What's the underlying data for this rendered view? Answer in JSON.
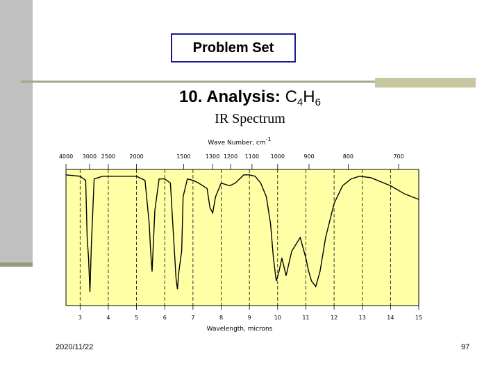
{
  "slide": {
    "box_title": "Problem Set",
    "heading_bold": "10. Analysis:",
    "formula_c": "C",
    "formula_c_sub": "4",
    "formula_h": "H",
    "formula_h_sub": "6",
    "subheading": "IR Spectrum",
    "date": "2020/11/22",
    "page_number": "97"
  },
  "colors": {
    "plot_fill": "#ffffa6",
    "spectrum": "#000000",
    "sidebar": "#c0c0c0",
    "title_border": "#1a1a8c"
  },
  "chart_data": {
    "type": "line",
    "title": "",
    "xlabel": "Wavelength, microns",
    "x2label_text": "Wave Number, cm",
    "x2label_sup": "-1",
    "ylabel": "",
    "xlim": [
      2.5,
      15
    ],
    "ylim": [
      0,
      100
    ],
    "grid": true,
    "legend": "none",
    "bottom_ticks": [
      "3",
      "4",
      "5",
      "6",
      "7",
      "8",
      "9",
      "10",
      "11",
      "12",
      "13",
      "14",
      "15"
    ],
    "top_ticks": [
      "4000",
      "3000",
      "2500",
      "2000",
      "1500",
      "1300",
      "1200",
      "1100",
      "1000",
      "900",
      "800",
      "700"
    ],
    "series": [
      {
        "x": [
          2.5,
          3.0,
          3.2,
          3.25,
          3.3,
          3.35,
          3.4,
          3.5,
          3.8,
          4.5,
          5.0,
          5.3,
          5.45,
          5.5,
          5.55,
          5.65,
          5.8,
          6.0,
          6.2,
          6.3,
          6.4,
          6.45,
          6.5,
          6.6,
          6.65,
          6.8,
          7.0,
          7.2,
          7.5,
          7.6,
          7.7,
          7.8,
          8.0,
          8.3,
          8.5,
          8.8,
          9.0,
          9.2,
          9.4,
          9.6,
          9.75,
          9.85,
          9.95,
          10.05,
          10.15,
          10.3,
          10.5,
          10.8,
          11.0,
          11.1,
          11.2,
          11.35,
          11.5,
          11.7,
          12.0,
          12.3,
          12.6,
          12.9,
          13.3,
          14.0,
          14.5,
          15.0
        ],
        "y": [
          96,
          95,
          92,
          50,
          35,
          10,
          45,
          93,
          95,
          95,
          95,
          92,
          60,
          40,
          25,
          70,
          93,
          93,
          90,
          55,
          20,
          12,
          25,
          40,
          80,
          93,
          92,
          90,
          86,
          72,
          68,
          80,
          90,
          88,
          90,
          96,
          96,
          95,
          90,
          80,
          60,
          35,
          18,
          25,
          35,
          22,
          40,
          50,
          35,
          25,
          18,
          14,
          25,
          50,
          75,
          88,
          93,
          95,
          94,
          88,
          82,
          78
        ]
      }
    ]
  }
}
